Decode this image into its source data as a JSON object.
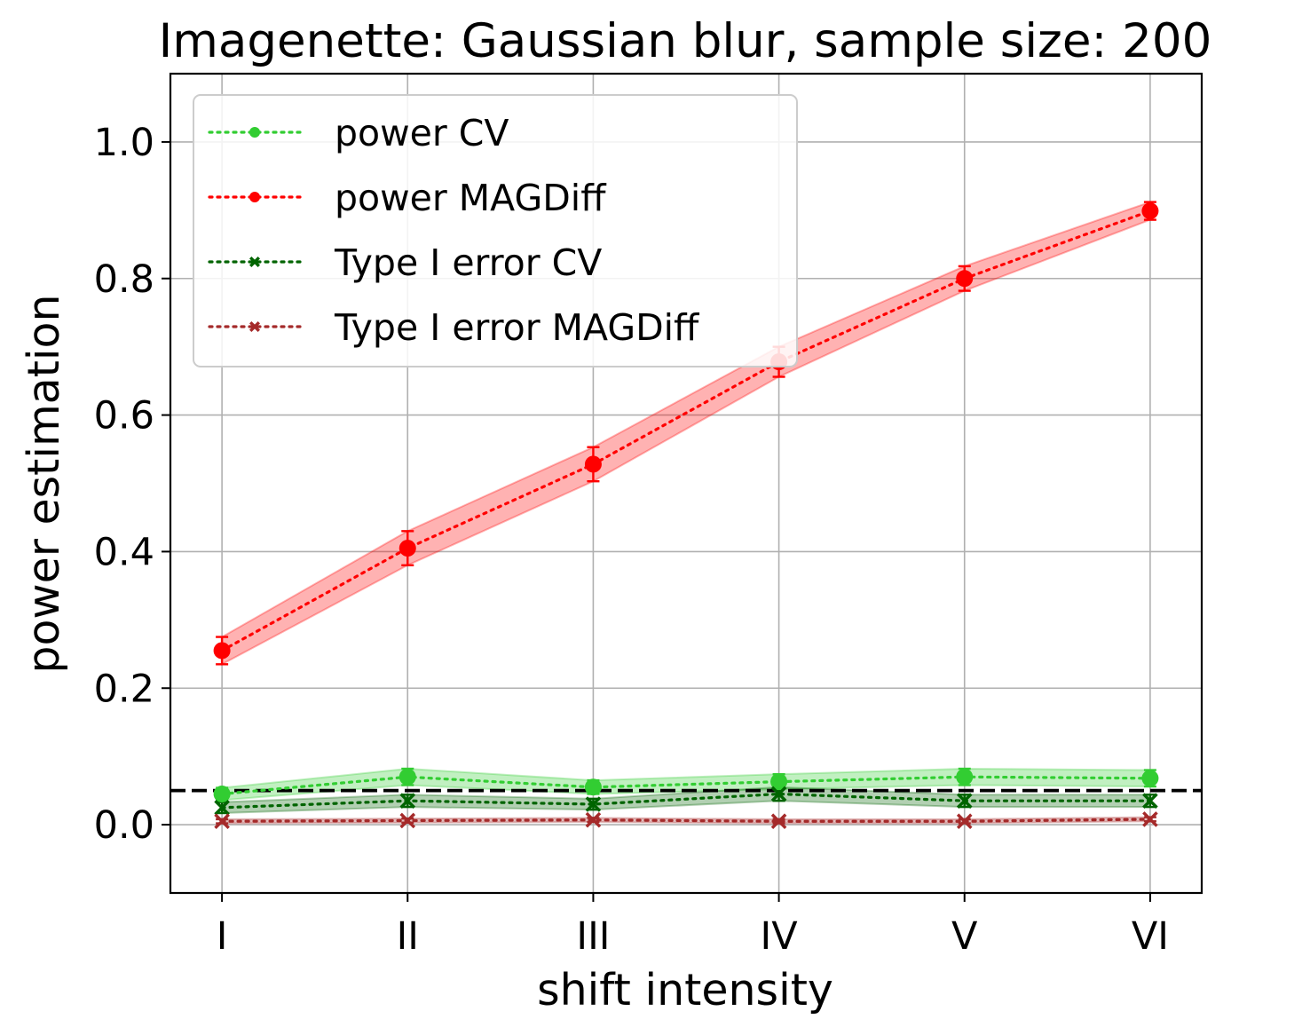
{
  "chart_data": {
    "type": "line",
    "title": "Imagenette: Gaussian blur, sample size: 200",
    "xlabel": "shift intensity",
    "ylabel": "power estimation",
    "categories": [
      "I",
      "II",
      "III",
      "IV",
      "V",
      "VI"
    ],
    "ylim": [
      -0.1,
      1.1
    ],
    "yticks": [
      "0.0",
      "0.2",
      "0.4",
      "0.6",
      "0.8",
      "1.0"
    ],
    "grid": true,
    "legend_position": "upper-left",
    "reference_line": {
      "y": 0.05,
      "style": "dashed",
      "color": "#000000"
    },
    "series": [
      {
        "name": "power CV",
        "color": "#32cd32",
        "marker": "circle",
        "values": [
          0.045,
          0.07,
          0.055,
          0.063,
          0.07,
          0.068
        ],
        "ci": [
          0.009,
          0.012,
          0.01,
          0.011,
          0.012,
          0.012
        ]
      },
      {
        "name": "power MAGDiff",
        "color": "#ff0000",
        "marker": "circle",
        "values": [
          0.255,
          0.405,
          0.528,
          0.678,
          0.8,
          0.899
        ],
        "ci": [
          0.02,
          0.025,
          0.025,
          0.022,
          0.018,
          0.013
        ]
      },
      {
        "name": "Type I error CV",
        "color": "#006400",
        "marker": "x",
        "values": [
          0.025,
          0.035,
          0.03,
          0.045,
          0.035,
          0.035
        ],
        "ci": [
          0.008,
          0.009,
          0.008,
          0.01,
          0.009,
          0.009
        ]
      },
      {
        "name": "Type I error MAGDiff",
        "color": "#a52a2a",
        "marker": "x",
        "values": [
          0.005,
          0.006,
          0.007,
          0.005,
          0.005,
          0.008
        ],
        "ci": [
          0.003,
          0.003,
          0.003,
          0.003,
          0.003,
          0.003
        ]
      }
    ]
  }
}
